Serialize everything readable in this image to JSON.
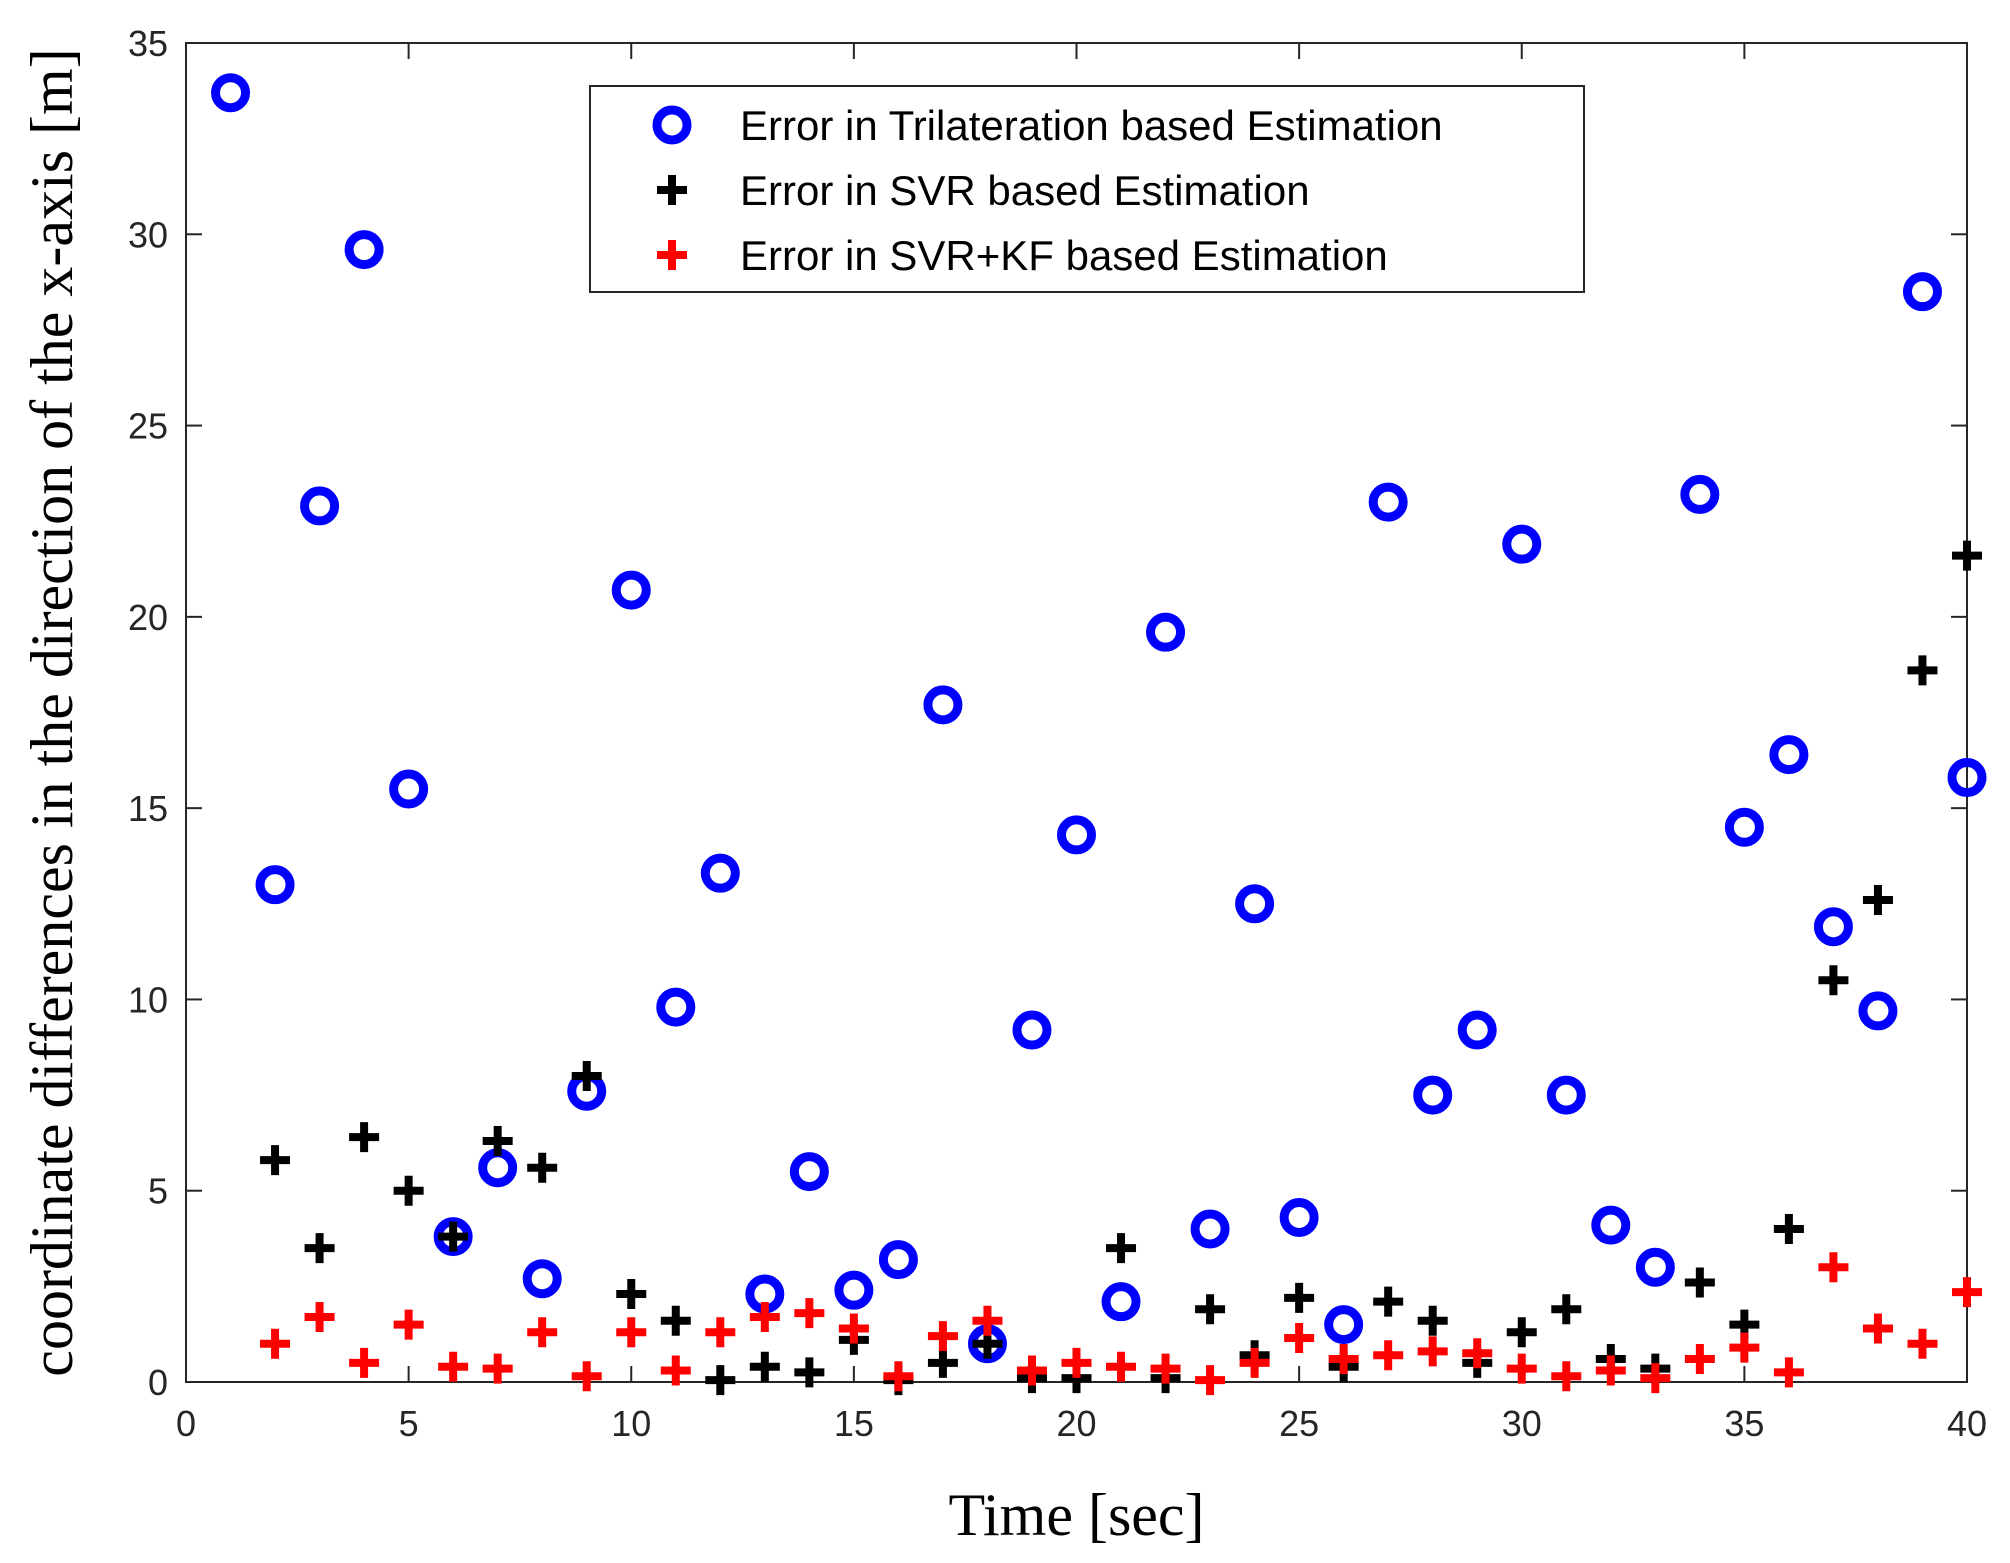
{
  "chart_data": {
    "type": "scatter",
    "title": "",
    "xlabel": "Time [sec]",
    "ylabel": "coordinate differences in the direction of the x-axis [m]",
    "xlim": [
      0,
      40
    ],
    "ylim": [
      0,
      35
    ],
    "x_ticks": [
      0,
      5,
      10,
      15,
      20,
      25,
      30,
      35,
      40
    ],
    "y_ticks": [
      0,
      5,
      10,
      15,
      20,
      25,
      30,
      35
    ],
    "x_tick_labels": [
      "0",
      "5",
      "10",
      "15",
      "20",
      "25",
      "30",
      "35",
      "40"
    ],
    "y_tick_labels": [
      "0",
      "5",
      "10",
      "15",
      "20",
      "25",
      "30",
      "35"
    ],
    "grid": false,
    "legend_position": "top-right",
    "series": [
      {
        "name": "Error in Trilateration based Estimation",
        "marker": "circle",
        "color": "#0000ff",
        "x": [
          1,
          2,
          3,
          4,
          5,
          6,
          7,
          8,
          9,
          10,
          11,
          12,
          13,
          14,
          15,
          16,
          17,
          18,
          19,
          20,
          21,
          22,
          23,
          24,
          25,
          26,
          27,
          28,
          29,
          30,
          31,
          32,
          33,
          34,
          35,
          36,
          37,
          38,
          39,
          40
        ],
        "values": [
          33.7,
          13.0,
          22.9,
          29.6,
          15.5,
          3.8,
          5.6,
          2.7,
          7.6,
          20.7,
          9.8,
          13.3,
          2.3,
          5.5,
          2.4,
          3.2,
          17.7,
          1.0,
          9.2,
          14.3,
          2.1,
          19.6,
          4.0,
          12.5,
          4.3,
          1.5,
          23.0,
          7.5,
          9.2,
          21.9,
          7.5,
          4.1,
          3.0,
          23.2,
          14.5,
          16.4,
          11.9,
          9.7,
          28.5,
          15.8
        ]
      },
      {
        "name": "Error in SVR based Estimation",
        "marker": "plus",
        "color": "#000000",
        "x": [
          2,
          3,
          4,
          5,
          6,
          7,
          8,
          9,
          10,
          11,
          12,
          13,
          14,
          15,
          16,
          17,
          18,
          19,
          20,
          21,
          22,
          23,
          24,
          25,
          26,
          27,
          28,
          29,
          30,
          31,
          32,
          33,
          34,
          35,
          36,
          37,
          38,
          39,
          40
        ],
        "values": [
          5.8,
          3.5,
          6.4,
          5.0,
          3.8,
          6.3,
          5.6,
          8.0,
          2.3,
          1.6,
          0.05,
          0.4,
          0.25,
          1.1,
          0.05,
          0.5,
          1.0,
          0.1,
          0.1,
          3.5,
          0.1,
          1.9,
          0.7,
          2.2,
          0.4,
          2.1,
          1.6,
          0.5,
          1.3,
          1.9,
          0.6,
          0.35,
          2.6,
          1.5,
          4.0,
          10.5,
          12.6,
          18.6,
          21.6
        ]
      },
      {
        "name": "Error in SVR+KF based Estimation",
        "marker": "plus",
        "color": "#ff0000",
        "x": [
          2,
          3,
          4,
          5,
          6,
          7,
          8,
          9,
          10,
          11,
          12,
          13,
          14,
          15,
          16,
          17,
          18,
          19,
          20,
          21,
          22,
          23,
          24,
          25,
          26,
          27,
          28,
          29,
          30,
          31,
          32,
          33,
          34,
          35,
          36,
          37,
          38,
          39,
          40
        ],
        "values": [
          1.0,
          1.7,
          0.5,
          1.5,
          0.4,
          0.35,
          1.3,
          0.15,
          1.3,
          0.3,
          1.3,
          1.7,
          1.8,
          1.4,
          0.15,
          1.2,
          1.6,
          0.3,
          0.5,
          0.4,
          0.35,
          0.05,
          0.5,
          1.15,
          0.6,
          0.7,
          0.8,
          0.75,
          0.35,
          0.15,
          0.3,
          0.1,
          0.6,
          0.9,
          0.25,
          3.0,
          1.4,
          1.0,
          2.35
        ]
      }
    ]
  }
}
